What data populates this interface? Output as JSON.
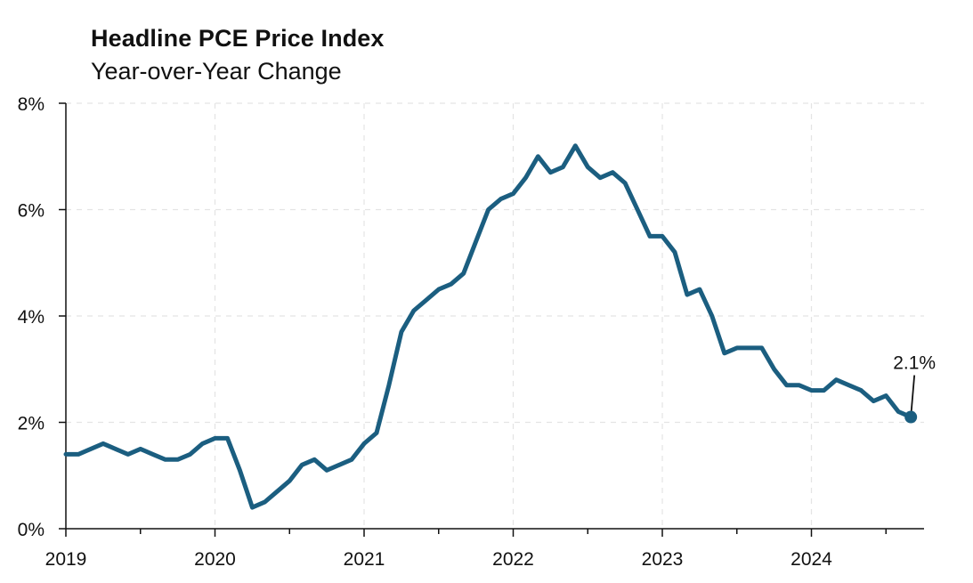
{
  "chart_data": {
    "type": "line",
    "title": "Headline PCE Price Index",
    "subtitle": "Year-over-Year Change",
    "xlabel": "",
    "ylabel": "",
    "x_tick_labels": [
      "2019",
      "2020",
      "2021",
      "2022",
      "2023",
      "2024"
    ],
    "y_tick_labels": [
      "0%",
      "2%",
      "4%",
      "6%",
      "8%"
    ],
    "ylim": [
      0,
      8
    ],
    "grid": true,
    "legend": "none",
    "line_color": "#1b5e80",
    "series": [
      {
        "x": [
          "2019-01",
          "2019-02",
          "2019-03",
          "2019-04",
          "2019-05",
          "2019-06",
          "2019-07",
          "2019-08",
          "2019-09",
          "2019-10",
          "2019-11",
          "2019-12",
          "2020-01",
          "2020-02",
          "2020-03",
          "2020-04",
          "2020-05",
          "2020-06",
          "2020-07",
          "2020-08",
          "2020-09",
          "2020-10",
          "2020-11",
          "2020-12",
          "2021-01",
          "2021-02",
          "2021-03",
          "2021-04",
          "2021-05",
          "2021-06",
          "2021-07",
          "2021-08",
          "2021-09",
          "2021-10",
          "2021-11",
          "2021-12",
          "2022-01",
          "2022-02",
          "2022-03",
          "2022-04",
          "2022-05",
          "2022-06",
          "2022-07",
          "2022-08",
          "2022-09",
          "2022-10",
          "2022-11",
          "2022-12",
          "2023-01",
          "2023-02",
          "2023-03",
          "2023-04",
          "2023-05",
          "2023-06",
          "2023-07",
          "2023-08",
          "2023-09",
          "2023-10",
          "2023-11",
          "2023-12",
          "2024-01",
          "2024-02",
          "2024-03",
          "2024-04",
          "2024-05",
          "2024-06",
          "2024-07",
          "2024-08",
          "2024-09"
        ],
        "values": [
          1.4,
          1.4,
          1.5,
          1.6,
          1.5,
          1.4,
          1.5,
          1.4,
          1.3,
          1.3,
          1.4,
          1.6,
          1.7,
          1.7,
          1.1,
          0.4,
          0.5,
          0.7,
          0.9,
          1.2,
          1.3,
          1.1,
          1.2,
          1.3,
          1.6,
          1.8,
          2.7,
          3.7,
          4.1,
          4.3,
          4.5,
          4.6,
          4.8,
          5.4,
          6.0,
          6.2,
          6.3,
          6.6,
          7.0,
          6.7,
          6.8,
          7.2,
          6.8,
          6.6,
          6.7,
          6.5,
          6.0,
          5.5,
          5.5,
          5.2,
          4.4,
          4.5,
          4.0,
          3.3,
          3.4,
          3.4,
          3.4,
          3.0,
          2.7,
          2.7,
          2.6,
          2.6,
          2.8,
          2.7,
          2.6,
          2.4,
          2.5,
          2.2,
          2.1
        ]
      }
    ],
    "annotations": [
      {
        "x": "2024-09",
        "y": 2.1,
        "text": "2.1%"
      }
    ]
  }
}
